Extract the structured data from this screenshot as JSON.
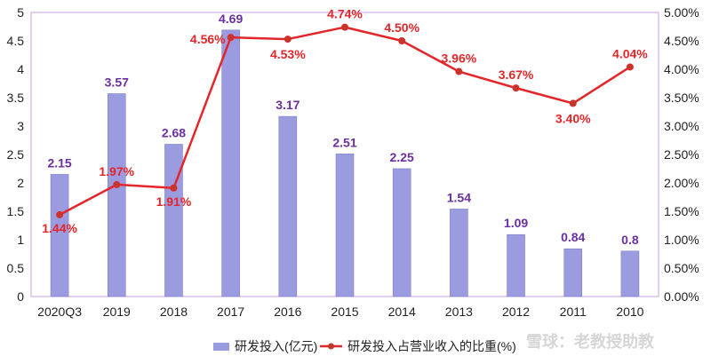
{
  "chart_data": {
    "type": "bar",
    "categories": [
      "2020Q3",
      "2019",
      "2018",
      "2017",
      "2016",
      "2015",
      "2014",
      "2013",
      "2012",
      "2011",
      "2010"
    ],
    "series": [
      {
        "name": "研发投入(亿元)",
        "kind": "bar",
        "axis": "left",
        "values": [
          2.15,
          3.57,
          2.68,
          4.69,
          3.17,
          2.51,
          2.25,
          1.54,
          1.09,
          0.84,
          0.8
        ],
        "labels": [
          "2.15",
          "3.57",
          "2.68",
          "4.69",
          "3.17",
          "2.51",
          "2.25",
          "1.54",
          "1.09",
          "0.84",
          "0.8"
        ],
        "color": "#9b9be0",
        "label_color": "#6a2fa0"
      },
      {
        "name": "研发投入占营业收入的比重(%)",
        "kind": "line",
        "axis": "right",
        "values": [
          1.44,
          1.97,
          1.91,
          4.56,
          4.53,
          4.74,
          4.5,
          3.96,
          3.67,
          3.4,
          4.04
        ],
        "labels": [
          "1.44%",
          "1.97%",
          "1.91%",
          "4.56%",
          "4.53%",
          "4.74%",
          "4.50%",
          "3.96%",
          "3.67%",
          "3.40%",
          "4.04%"
        ],
        "color": "#e3262a",
        "label_color": "#e3262a"
      }
    ],
    "y_left": {
      "ylim": [
        0,
        5
      ],
      "ticks": [
        "0",
        "0.5",
        "1",
        "1.5",
        "2",
        "2.5",
        "3",
        "3.5",
        "4",
        "4.5",
        "5"
      ]
    },
    "y_right": {
      "ylim": [
        0,
        5
      ],
      "ticks": [
        "0.00%",
        "0.50%",
        "1.00%",
        "1.50%",
        "2.00%",
        "2.50%",
        "3.00%",
        "3.50%",
        "4.00%",
        "4.50%",
        "5.00%"
      ]
    },
    "grid": false,
    "legend": "bottom",
    "frame_color": "#c9a0dc"
  },
  "watermark": "雪球：老教授助教"
}
